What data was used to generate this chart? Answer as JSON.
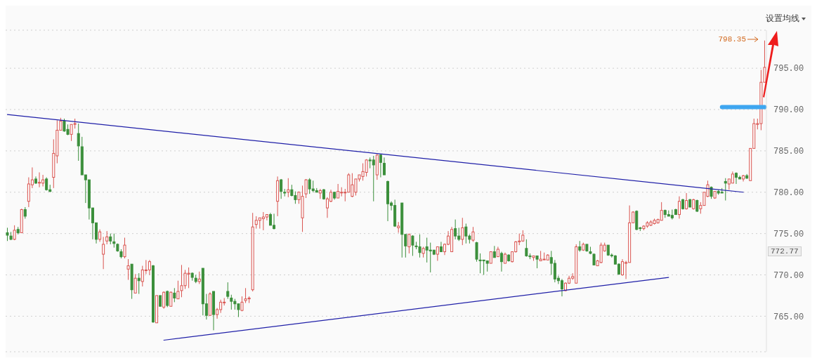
{
  "chart_data": {
    "type": "candlestick",
    "annotations": [
      "设置均线",
      "798.35",
      "772.77"
    ],
    "categories": [
      null,
      null,
      null,
      null,
      null,
      null,
      null,
      null,
      null,
      null,
      null,
      null,
      null,
      null,
      null,
      null,
      null,
      null,
      null,
      null,
      null,
      null,
      null,
      null,
      null,
      null,
      null,
      null,
      null,
      null,
      null,
      null,
      null,
      null,
      null,
      null,
      null,
      null,
      null,
      null,
      null,
      null,
      null,
      null,
      null,
      null,
      null,
      null,
      null,
      null,
      null,
      null,
      null,
      null,
      null,
      null,
      null,
      null,
      null,
      null,
      null,
      null,
      null,
      null,
      null,
      null,
      null,
      null,
      null,
      null,
      null,
      null,
      null,
      null,
      null,
      null,
      null,
      null,
      null,
      null,
      null,
      null,
      null,
      null,
      null,
      null,
      null,
      null,
      null,
      null,
      null,
      null,
      null,
      null,
      null,
      null,
      null,
      null,
      null,
      null,
      null,
      null,
      null,
      null,
      null,
      null,
      null,
      null,
      null,
      null,
      null,
      null,
      null,
      null,
      null,
      null,
      null,
      null,
      null,
      null,
      null,
      null,
      null,
      null,
      null,
      null,
      null,
      null,
      null,
      null,
      null,
      null,
      null,
      null,
      null,
      null,
      null,
      null,
      null,
      null,
      null,
      null,
      null,
      null,
      null,
      null,
      null,
      null,
      null,
      null,
      null,
      null,
      null,
      null,
      null,
      null,
      null,
      null,
      null,
      null,
      null,
      null,
      null,
      null,
      null,
      null,
      null,
      null,
      null,
      null,
      null,
      null,
      null,
      null,
      null,
      null,
      null,
      null,
      null,
      null,
      null,
      null,
      null,
      null,
      null,
      null,
      null,
      null,
      null,
      null,
      null,
      null,
      null,
      null,
      null,
      null,
      null,
      null,
      null,
      null,
      null,
      null,
      null,
      null,
      null,
      null,
      null,
      null,
      null,
      null,
      null,
      null,
      null,
      null
    ],
    "ohlc": [
      [
        775.1,
        775.7,
        774.1,
        774.8
      ],
      [
        774.7,
        775.2,
        774.2,
        774.3
      ],
      [
        774.3,
        776.0,
        774.2,
        775.4
      ],
      [
        775.5,
        775.8,
        774.9,
        775.1
      ],
      [
        775.1,
        778.0,
        775.1,
        777.9
      ],
      [
        777.9,
        778.2,
        776.8,
        777.1
      ],
      [
        778.9,
        781.8,
        778.2,
        781.0
      ],
      [
        780.9,
        783.0,
        780.5,
        781.5
      ],
      [
        781.6,
        781.9,
        781.0,
        781.1
      ],
      [
        781.1,
        782.4,
        780.6,
        781.2
      ],
      [
        781.1,
        782.1,
        780.7,
        781.5
      ],
      [
        781.6,
        781.8,
        780.2,
        780.3
      ],
      [
        780.3,
        780.9,
        780.0,
        780.1
      ],
      [
        781.8,
        786.4,
        780.5,
        784.7
      ],
      [
        784.4,
        788.7,
        783.5,
        787.5
      ],
      [
        787.5,
        789.0,
        787.5,
        788.6
      ],
      [
        788.6,
        788.9,
        787.3,
        787.4
      ],
      [
        787.6,
        788.2,
        786.9,
        787.0
      ],
      [
        787.0,
        788.2,
        786.2,
        788.2
      ],
      [
        788.3,
        788.9,
        787.7,
        788.3
      ],
      [
        787.1,
        788.3,
        783.8,
        785.6
      ],
      [
        785.5,
        786.7,
        782.1,
        782.1
      ],
      [
        782.1,
        782.1,
        778.7,
        781.5
      ],
      [
        781.5,
        781.5,
        776.7,
        778.1
      ],
      [
        778.1,
        778.1,
        774.3,
        776.3
      ],
      [
        776.3,
        776.3,
        773.8,
        774.3
      ],
      [
        774.3,
        775.5,
        774.0,
        775.2
      ],
      [
        772.5,
        774.6,
        770.7,
        773.7
      ],
      [
        774.1,
        775.3,
        773.7,
        774.6
      ],
      [
        774.6,
        775.0,
        773.7,
        774.1
      ],
      [
        774.0,
        775.0,
        773.3,
        773.8
      ],
      [
        773.7,
        773.8,
        772.8,
        772.9
      ],
      [
        772.8,
        773.1,
        772.0,
        772.2
      ],
      [
        772.2,
        774.5,
        772.0,
        773.6
      ],
      [
        770.7,
        771.9,
        769.4,
        771.1
      ],
      [
        771.3,
        771.3,
        767.1,
        768.2
      ],
      [
        767.8,
        770.1,
        767.8,
        769.6
      ],
      [
        769.6,
        770.2,
        767.7,
        769.3
      ],
      [
        769.2,
        771.1,
        768.6,
        770.6
      ],
      [
        770.6,
        771.8,
        770.1,
        770.6
      ],
      [
        770.6,
        771.8,
        770.0,
        771.6
      ],
      [
        771.1,
        771.2,
        764.2,
        764.3
      ],
      [
        764.2,
        767.5,
        764.2,
        767.5
      ],
      [
        767.5,
        767.5,
        766.2,
        766.2
      ],
      [
        766.1,
        768.0,
        765.9,
        767.9
      ],
      [
        768.0,
        768.1,
        766.1,
        766.3
      ],
      [
        766.2,
        768.0,
        766.2,
        767.9
      ],
      [
        767.8,
        768.4,
        766.7,
        767.2
      ],
      [
        767.1,
        769.3,
        767.1,
        768.0
      ],
      [
        768.1,
        771.2,
        767.3,
        768.7
      ],
      [
        768.7,
        770.6,
        768.3,
        770.2
      ],
      [
        770.1,
        770.9,
        768.4,
        770.2
      ],
      [
        770.2,
        770.3,
        769.3,
        769.7
      ],
      [
        769.6,
        770.0,
        769.0,
        769.2
      ],
      [
        769.2,
        770.4,
        768.9,
        769.5
      ],
      [
        770.8,
        770.8,
        765.1,
        766.5
      ],
      [
        766.5,
        767.7,
        764.6,
        765.1
      ],
      [
        765.1,
        767.9,
        765.1,
        767.7
      ],
      [
        768.0,
        768.0,
        763.3,
        765.2
      ],
      [
        765.2,
        766.0,
        764.7,
        765.8
      ],
      [
        765.8,
        767.0,
        765.4,
        766.7
      ],
      [
        766.7,
        767.2,
        766.3,
        766.7
      ],
      [
        768.0,
        769.1,
        767.1,
        767.4
      ],
      [
        767.2,
        767.6,
        765.8,
        766.8
      ],
      [
        766.8,
        767.1,
        765.8,
        766.5
      ],
      [
        766.5,
        766.5,
        764.9,
        765.8
      ],
      [
        765.7,
        767.4,
        765.6,
        766.7
      ],
      [
        766.9,
        768.4,
        766.6,
        767.1
      ],
      [
        767.1,
        767.4,
        766.6,
        767.2
      ],
      [
        768.2,
        777.5,
        768.0,
        775.8
      ],
      [
        776.1,
        777.1,
        775.6,
        776.6
      ],
      [
        776.6,
        776.9,
        775.6,
        776.9
      ],
      [
        776.8,
        777.6,
        775.4,
        777.0
      ],
      [
        777.0,
        777.3,
        776.6,
        777.3
      ],
      [
        777.3,
        777.5,
        776.0,
        776.0
      ],
      [
        776.0,
        777.4,
        775.5,
        775.6
      ],
      [
        778.9,
        781.9,
        777.1,
        781.4
      ],
      [
        781.5,
        781.6,
        779.2,
        780.1
      ],
      [
        780.0,
        780.4,
        779.5,
        779.9
      ],
      [
        780.0,
        781.7,
        779.4,
        780.3
      ],
      [
        780.3,
        780.9,
        779.5,
        779.6
      ],
      [
        779.6,
        780.1,
        778.6,
        779.1
      ],
      [
        779.1,
        780.1,
        778.6,
        780.0
      ],
      [
        776.9,
        780.8,
        775.2,
        779.5
      ],
      [
        779.8,
        781.6,
        779.3,
        781.5
      ],
      [
        781.5,
        781.7,
        779.8,
        780.4
      ],
      [
        780.4,
        781.4,
        780.0,
        780.2
      ],
      [
        780.2,
        780.5,
        780.0,
        780.0
      ],
      [
        779.9,
        780.4,
        779.2,
        780.2
      ],
      [
        780.3,
        780.4,
        779.1,
        779.2
      ],
      [
        778.1,
        779.4,
        776.9,
        779.2
      ],
      [
        778.9,
        780.3,
        778.8,
        780.0
      ],
      [
        780.0,
        780.0,
        779.1,
        779.3
      ],
      [
        779.3,
        781.0,
        779.3,
        780.1
      ],
      [
        780.0,
        780.6,
        779.5,
        780.0
      ],
      [
        780.0,
        780.4,
        778.9,
        780.0
      ],
      [
        780.0,
        782.3,
        780.0,
        782.1
      ],
      [
        779.5,
        782.3,
        779.4,
        780.9
      ],
      [
        780.0,
        781.6,
        779.6,
        781.6
      ],
      [
        781.6,
        782.1,
        781.3,
        782.1
      ],
      [
        781.9,
        783.5,
        781.4,
        782.5
      ],
      [
        782.4,
        784.0,
        781.9,
        783.9
      ],
      [
        783.9,
        784.2,
        782.9,
        783.8
      ],
      [
        783.9,
        784.4,
        778.9,
        783.3
      ],
      [
        782.1,
        784.6,
        781.5,
        784.5
      ],
      [
        784.5,
        784.6,
        781.8,
        783.6
      ],
      [
        783.5,
        784.2,
        782.1,
        782.1
      ],
      [
        781.3,
        781.4,
        776.5,
        778.6
      ],
      [
        778.7,
        778.9,
        777.8,
        778.4
      ],
      [
        778.4,
        779.1,
        775.8,
        775.9
      ],
      [
        775.7,
        776.4,
        775.1,
        775.9
      ],
      [
        778.7,
        778.7,
        772.1,
        774.9
      ],
      [
        774.9,
        774.9,
        772.1,
        773.5
      ],
      [
        773.4,
        775.0,
        772.6,
        774.9
      ],
      [
        774.7,
        774.8,
        772.3,
        773.6
      ],
      [
        773.5,
        774.0,
        773.1,
        773.4
      ],
      [
        773.4,
        774.9,
        772.1,
        772.7
      ],
      [
        772.6,
        773.4,
        772.1,
        773.2
      ],
      [
        773.4,
        774.5,
        771.5,
        773.0
      ],
      [
        773.0,
        773.9,
        770.3,
        772.9
      ],
      [
        773.0,
        773.0,
        772.4,
        772.5
      ],
      [
        772.5,
        773.4,
        771.7,
        773.4
      ],
      [
        773.4,
        774.0,
        772.8,
        772.8
      ],
      [
        772.8,
        773.8,
        772.4,
        773.7
      ],
      [
        773.7,
        775.3,
        773.6,
        774.7
      ],
      [
        772.8,
        775.8,
        772.8,
        775.5
      ],
      [
        775.6,
        776.7,
        774.3,
        774.7
      ],
      [
        774.7,
        775.7,
        774.1,
        774.3
      ],
      [
        774.3,
        776.9,
        773.6,
        775.7
      ],
      [
        775.8,
        776.2,
        773.8,
        774.7
      ],
      [
        774.7,
        774.9,
        773.8,
        774.3
      ],
      [
        774.2,
        775.8,
        774.0,
        775.2
      ],
      [
        773.9,
        774.0,
        771.6,
        771.9
      ],
      [
        771.8,
        772.6,
        770.2,
        771.7
      ],
      [
        771.8,
        771.8,
        770.0,
        771.7
      ],
      [
        771.7,
        771.7,
        770.4,
        771.4
      ],
      [
        771.4,
        772.8,
        771.4,
        772.8
      ],
      [
        772.8,
        773.5,
        772.1,
        772.1
      ],
      [
        772.2,
        773.4,
        772.2,
        773.1
      ],
      [
        772.6,
        772.8,
        770.4,
        771.6
      ],
      [
        771.4,
        772.7,
        771.4,
        772.5
      ],
      [
        772.4,
        772.5,
        771.6,
        771.7
      ],
      [
        771.6,
        772.8,
        771.5,
        772.8
      ],
      [
        772.8,
        774.1,
        772.7,
        774.0
      ],
      [
        774.0,
        775.0,
        773.6,
        774.1
      ],
      [
        774.1,
        775.4,
        774.0,
        774.8
      ],
      [
        773.2,
        774.3,
        772.2,
        772.3
      ],
      [
        772.3,
        772.6,
        771.9,
        772.2
      ],
      [
        772.1,
        772.3,
        771.7,
        772.3
      ],
      [
        772.3,
        772.3,
        770.8,
        771.9
      ],
      [
        771.7,
        772.9,
        771.7,
        771.9
      ],
      [
        771.9,
        772.7,
        771.8,
        771.9
      ],
      [
        771.8,
        772.5,
        771.8,
        772.4
      ],
      [
        772.1,
        772.9,
        770.0,
        771.4
      ],
      [
        771.4,
        771.8,
        769.1,
        769.5
      ],
      [
        769.6,
        769.9,
        768.9,
        769.3
      ],
      [
        769.3,
        769.5,
        767.4,
        768.3
      ],
      [
        768.1,
        769.1,
        768.0,
        769.0
      ],
      [
        769.0,
        769.9,
        768.9,
        769.6
      ],
      [
        769.6,
        770.2,
        769.4,
        769.8
      ],
      [
        769.0,
        773.7,
        769.0,
        773.4
      ],
      [
        773.4,
        774.1,
        772.8,
        773.0
      ],
      [
        773.0,
        773.9,
        772.9,
        773.7
      ],
      [
        773.7,
        773.7,
        772.8,
        772.9
      ],
      [
        772.8,
        773.4,
        772.5,
        772.6
      ],
      [
        772.5,
        772.6,
        771.2,
        771.2
      ],
      [
        771.1,
        771.8,
        771.1,
        771.7
      ],
      [
        771.5,
        773.9,
        771.4,
        773.6
      ],
      [
        772.9,
        773.9,
        772.8,
        773.6
      ],
      [
        773.6,
        773.6,
        772.3,
        772.4
      ],
      [
        772.4,
        772.6,
        772.1,
        772.3
      ],
      [
        772.3,
        772.4,
        771.3,
        771.3
      ],
      [
        771.3,
        771.4,
        770.0,
        770.1
      ],
      [
        770.0,
        771.9,
        769.9,
        771.6
      ],
      [
        771.4,
        771.7,
        769.5,
        771.5
      ],
      [
        771.5,
        778.4,
        771.5,
        776.3
      ],
      [
        776.3,
        777.7,
        776.3,
        777.6
      ],
      [
        777.7,
        777.8,
        775.4,
        775.5
      ],
      [
        775.7,
        775.8,
        775.3,
        775.6
      ],
      [
        775.6,
        776.0,
        775.4,
        775.9
      ],
      [
        775.9,
        776.5,
        775.7,
        776.3
      ],
      [
        776.0,
        776.6,
        775.9,
        776.4
      ],
      [
        776.2,
        776.8,
        776.1,
        776.6
      ],
      [
        776.3,
        776.8,
        776.2,
        776.7
      ],
      [
        776.6,
        778.8,
        776.6,
        777.8
      ],
      [
        777.8,
        777.9,
        776.9,
        777.3
      ],
      [
        777.3,
        777.8,
        777.1,
        777.1
      ],
      [
        777.2,
        777.9,
        776.7,
        776.9
      ],
      [
        777.9,
        778.0,
        777.3,
        777.3
      ],
      [
        777.3,
        779.5,
        776.8,
        778.9
      ],
      [
        779.1,
        779.2,
        777.9,
        778.0
      ],
      [
        778.0,
        779.9,
        777.9,
        779.0
      ],
      [
        779.1,
        779.2,
        778.2,
        778.2
      ],
      [
        778.0,
        779.2,
        777.9,
        779.1
      ],
      [
        779.0,
        779.1,
        777.6,
        777.7
      ],
      [
        778.0,
        778.8,
        777.4,
        778.4
      ],
      [
        778.4,
        780.0,
        778.4,
        780.0
      ],
      [
        779.5,
        781.4,
        779.4,
        780.9
      ],
      [
        780.6,
        780.7,
        779.2,
        779.5
      ],
      [
        779.3,
        780.1,
        779.2,
        780.1
      ],
      [
        780.1,
        780.3,
        779.7,
        779.9
      ],
      [
        780.0,
        780.5,
        779.9,
        779.9
      ],
      [
        781.3,
        781.7,
        779.0,
        781.1
      ],
      [
        781.0,
        781.6,
        780.3,
        781.6
      ],
      [
        781.1,
        782.5,
        781.1,
        782.2
      ],
      [
        782.3,
        782.4,
        781.0,
        781.8
      ],
      [
        781.8,
        782.0,
        781.6,
        781.6
      ],
      [
        781.6,
        782.1,
        781.3,
        782.0
      ],
      [
        782.0,
        782.2,
        781.6,
        781.7
      ],
      [
        781.4,
        785.3,
        781.4,
        785.3
      ],
      [
        785.3,
        788.9,
        785.3,
        788.3
      ],
      [
        788.2,
        788.9,
        787.6,
        788.3
      ],
      [
        788.3,
        794.8,
        787.5,
        793.3
      ],
      [
        793.3,
        798.35,
        793.3,
        795.1
      ]
    ],
    "series": [
      {
        "type": "line",
        "color": "#1f1fa8",
        "values": [
          789.4,
          null,
          null,
          null,
          null,
          null,
          null,
          null,
          null,
          null,
          null,
          null,
          null,
          null,
          null,
          null,
          null,
          null,
          null,
          null,
          null,
          null,
          null,
          null,
          null,
          null,
          null,
          null,
          null,
          null,
          null,
          null,
          null,
          null,
          null,
          null,
          null,
          null,
          null,
          null,
          null,
          null,
          null,
          null,
          null,
          null,
          null,
          null,
          null,
          null,
          null,
          null,
          null,
          null,
          null,
          null,
          null,
          null,
          null,
          null,
          null,
          null,
          null,
          null,
          null,
          null,
          null,
          null,
          null,
          null,
          null,
          null,
          null,
          null,
          null,
          null,
          null,
          null,
          null,
          null,
          null,
          null,
          null,
          null,
          null,
          null,
          null,
          null,
          null,
          null,
          null,
          null,
          null,
          null,
          null,
          null,
          null,
          null,
          null,
          null,
          null,
          null,
          null,
          null,
          null,
          null,
          null,
          null,
          null,
          null,
          null,
          null,
          null,
          null,
          null,
          null,
          null,
          null,
          null,
          null,
          null,
          null,
          null,
          null,
          null,
          null,
          null,
          null,
          null,
          null,
          null,
          null,
          null,
          null,
          null,
          null,
          null,
          null,
          null,
          null,
          null,
          null,
          null,
          null,
          null,
          null,
          null,
          null,
          null,
          null,
          null,
          null,
          null,
          null,
          null,
          null,
          null,
          null,
          null,
          null,
          null,
          null,
          null,
          null,
          null,
          null,
          null,
          null,
          null,
          null,
          null,
          null,
          null,
          null,
          null,
          null,
          null,
          null,
          null,
          null,
          null,
          null,
          null,
          null,
          null,
          null,
          null,
          null,
          null,
          null,
          null,
          null,
          null,
          null,
          null,
          null,
          null,
          null,
          null,
          null,
          null,
          null,
          null,
          null,
          null,
          null,
          null,
          780.0,
          null,
          null,
          null,
          null,
          null,
          null
        ]
      },
      {
        "type": "line",
        "color": "#1f1fa8",
        "values": [
          null,
          null,
          null,
          null,
          null,
          null,
          null,
          null,
          null,
          null,
          null,
          null,
          null,
          null,
          null,
          null,
          null,
          null,
          null,
          null,
          null,
          null,
          null,
          null,
          null,
          null,
          null,
          null,
          null,
          null,
          null,
          null,
          null,
          null,
          null,
          null,
          null,
          null,
          null,
          null,
          null,
          null,
          null,
          null,
          762.1,
          null,
          null,
          null,
          null,
          null,
          null,
          null,
          null,
          null,
          null,
          null,
          null,
          null,
          null,
          null,
          null,
          null,
          null,
          null,
          null,
          null,
          null,
          null,
          null,
          null,
          null,
          null,
          null,
          null,
          null,
          null,
          null,
          null,
          null,
          null,
          null,
          null,
          null,
          null,
          null,
          null,
          null,
          null,
          null,
          null,
          null,
          null,
          null,
          null,
          null,
          null,
          null,
          null,
          null,
          null,
          null,
          null,
          null,
          null,
          null,
          null,
          null,
          null,
          null,
          null,
          null,
          null,
          null,
          null,
          null,
          null,
          null,
          null,
          null,
          null,
          null,
          null,
          null,
          null,
          null,
          null,
          null,
          null,
          null,
          null,
          null,
          null,
          null,
          null,
          null,
          null,
          null,
          null,
          null,
          null,
          null,
          null,
          null,
          null,
          null,
          null,
          null,
          null,
          null,
          null,
          null,
          null,
          null,
          null,
          null,
          null,
          null,
          null,
          null,
          null,
          null,
          null,
          null,
          null,
          null,
          null,
          null,
          null,
          null,
          null,
          null,
          null,
          null,
          null,
          null,
          null,
          null,
          null,
          null,
          null,
          null,
          null,
          null,
          null,
          null,
          null,
          769.7,
          null,
          null,
          null,
          null,
          null,
          null,
          null,
          null,
          null,
          null,
          null,
          null,
          null,
          null,
          null,
          null,
          null,
          null,
          null,
          null,
          null,
          null,
          null,
          null,
          null,
          null,
          null
        ]
      },
      {
        "type": "line",
        "color": "#3ea6f0",
        "values": [
          null,
          null,
          null,
          null,
          null,
          null,
          null,
          null,
          null,
          null,
          null,
          null,
          null,
          null,
          null,
          null,
          null,
          null,
          null,
          null,
          null,
          null,
          null,
          null,
          null,
          null,
          null,
          null,
          null,
          null,
          null,
          null,
          null,
          null,
          null,
          null,
          null,
          null,
          null,
          null,
          null,
          null,
          null,
          null,
          null,
          null,
          null,
          null,
          null,
          null,
          null,
          null,
          null,
          null,
          null,
          null,
          null,
          null,
          null,
          null,
          null,
          null,
          null,
          null,
          null,
          null,
          null,
          null,
          null,
          null,
          null,
          null,
          null,
          null,
          null,
          null,
          null,
          null,
          null,
          null,
          null,
          null,
          null,
          null,
          null,
          null,
          null,
          null,
          null,
          null,
          null,
          null,
          null,
          null,
          null,
          null,
          null,
          null,
          null,
          null,
          null,
          null,
          null,
          null,
          null,
          null,
          null,
          null,
          null,
          null,
          null,
          null,
          null,
          null,
          null,
          null,
          null,
          null,
          null,
          null,
          null,
          null,
          null,
          null,
          null,
          null,
          null,
          null,
          null,
          null,
          null,
          null,
          null,
          null,
          null,
          null,
          null,
          null,
          null,
          null,
          null,
          null,
          null,
          null,
          null,
          null,
          null,
          null,
          null,
          null,
          null,
          null,
          null,
          null,
          null,
          null,
          null,
          null,
          null,
          null,
          null,
          null,
          null,
          null,
          null,
          null,
          null,
          null,
          null,
          null,
          null,
          null,
          null,
          null,
          null,
          null,
          null,
          null,
          null,
          null,
          null,
          null,
          null,
          null,
          null,
          null,
          null,
          null,
          null,
          null,
          null,
          null,
          null,
          null,
          null,
          null,
          null,
          null,
          null,
          null,
          null,
          790.3,
          null,
          null,
          null,
          null,
          null,
          null,
          null,
          null,
          null,
          null,
          null,
          790.3
        ]
      }
    ],
    "ylim": [
      760.7,
      799.6
    ],
    "yticks": [
      {
        "value": 765,
        "label": "765.00"
      },
      {
        "value": 770,
        "label": "770.00"
      },
      {
        "value": 775,
        "label": "775.00"
      },
      {
        "value": 780,
        "label": "780.00"
      },
      {
        "value": 785,
        "label": "785.00"
      },
      {
        "value": 790,
        "label": "790.00"
      },
      {
        "value": 795,
        "label": "795.00"
      }
    ],
    "grid": "y",
    "tick_labels": "y",
    "line_style": "solid",
    "marker": "none"
  }
}
